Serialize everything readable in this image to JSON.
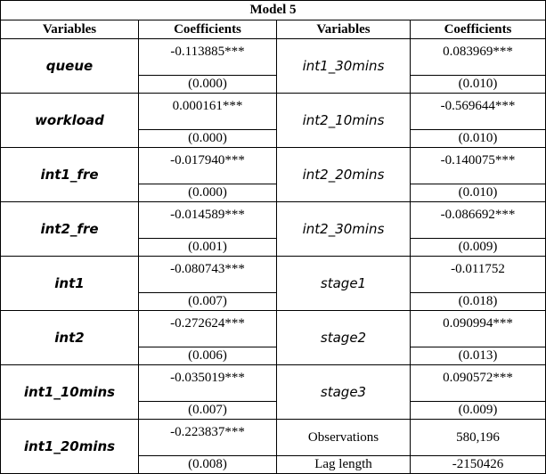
{
  "table": {
    "title": "Model 5",
    "headers": [
      "Variables",
      "Coefficients",
      "Variables",
      "Coefficients"
    ],
    "rows": [
      {
        "var1": "queue",
        "coef1": "-0.113885***",
        "se1": "(0.000)",
        "var2": "int1_30mins",
        "coef2": "0.083969***",
        "se2": "(0.010)"
      },
      {
        "var1": "workload",
        "coef1": "0.000161***",
        "se1": "(0.000)",
        "var2": "int2_10mins",
        "coef2": "-0.569644***",
        "se2": "(0.010)"
      },
      {
        "var1": "int1_fre",
        "coef1": "-0.017940***",
        "se1": "(0.000)",
        "var2": "int2_20mins",
        "coef2": "-0.140075***",
        "se2": "(0.010)"
      },
      {
        "var1": "int2_fre",
        "coef1": "-0.014589***",
        "se1": "(0.001)",
        "var2": "int2_30mins",
        "coef2": "-0.086692***",
        "se2": "(0.009)"
      },
      {
        "var1": "int1",
        "coef1": "-0.080743***",
        "se1": "(0.007)",
        "var2": "stage1",
        "coef2": "-0.011752",
        "se2": "(0.018)"
      },
      {
        "var1": "int2",
        "coef1": "-0.272624***",
        "se1": "(0.006)",
        "var2": "stage2",
        "coef2": "0.090994***",
        "se2": "(0.013)"
      },
      {
        "var1": "int1_10mins",
        "coef1": "-0.035019***",
        "se1": "(0.007)",
        "var2": "stage3",
        "coef2": "0.090572***",
        "se2": "(0.009)"
      }
    ],
    "last": {
      "var1": "int1_20mins",
      "coef1": "-0.223837***",
      "se1": "(0.008)",
      "obs_label": "Observations",
      "obs_value": "580,196",
      "lag_label": "Lag length",
      "lag_value": "-2150426"
    }
  }
}
